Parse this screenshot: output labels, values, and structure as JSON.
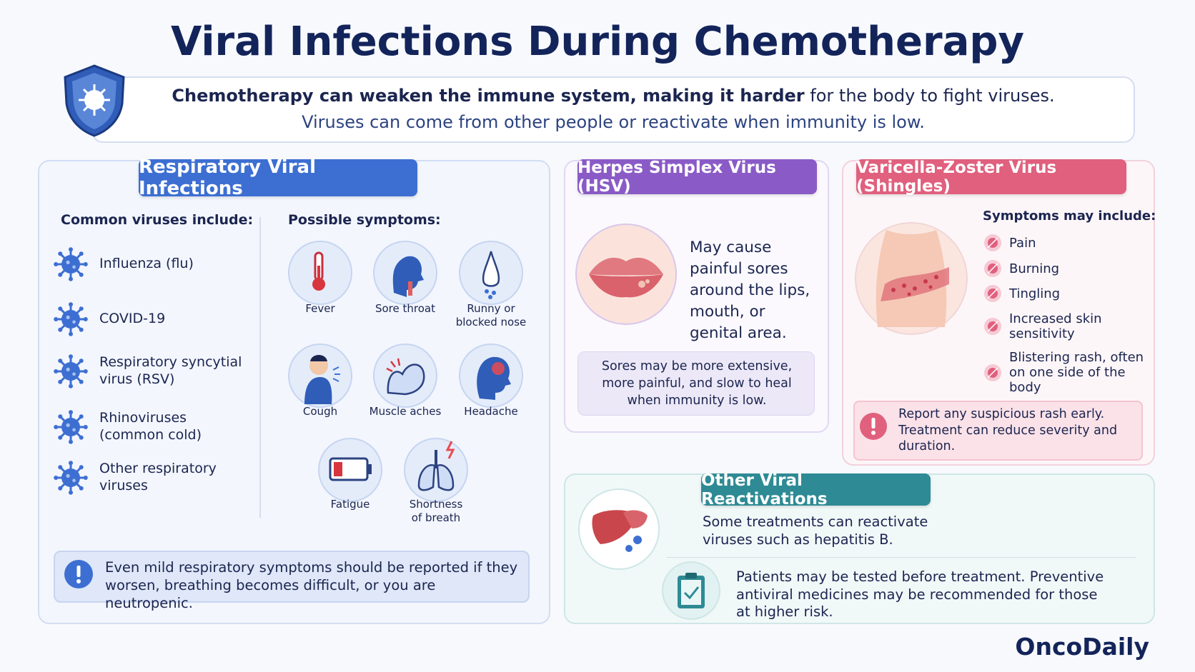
{
  "header": {
    "title": "Viral Infections During Chemotherapy",
    "intro_bold": "Chemotherapy can weaken the immune system, making it harder",
    "intro_rest": "for the body to fight viruses.",
    "intro_line2": "Viruses can come from other people or reactivate when immunity is low."
  },
  "respiratory": {
    "title": "Respiratory Viral Infections",
    "viruses_heading": "Common viruses include:",
    "viruses": [
      "Influenza (flu)",
      "COVID-19",
      "Respiratory syncytial virus (RSV)",
      "Rhinoviruses (common cold)",
      "Other respiratory viruses"
    ],
    "symptoms_heading": "Possible symptoms:",
    "symptoms": [
      "Fever",
      "Sore throat",
      "Runny or blocked nose",
      "Cough",
      "Muscle aches",
      "Headache",
      "Fatigue",
      "Shortness of breath"
    ],
    "note": "Even mild respiratory symptoms should be reported if they worsen, breathing becomes difficult, or you are neutropenic."
  },
  "hsv": {
    "title": "Herpes Simplex Virus (HSV)",
    "description": "May cause painful sores around the lips, mouth, or genital area.",
    "note": "Sores may be more extensive, more painful, and slow to heal when immunity is low."
  },
  "vzv": {
    "title": "Varicella-Zoster Virus (Shingles)",
    "symptoms_heading": "Symptoms may include:",
    "symptoms": [
      "Pain",
      "Burning",
      "Tingling",
      "Increased skin sensitivity",
      "Blistering rash, often on one side of the body"
    ],
    "alert": "Report any suspicious rash early. Treatment can reduce severity and duration."
  },
  "other": {
    "title": "Other Viral Reactivations",
    "text1": "Some treatments can reactivate viruses such as hepatitis B.",
    "text2": "Patients may be tested before treatment. Preventive antiviral medicines may be recommended for those at higher risk."
  },
  "brand": "OncoDaily"
}
